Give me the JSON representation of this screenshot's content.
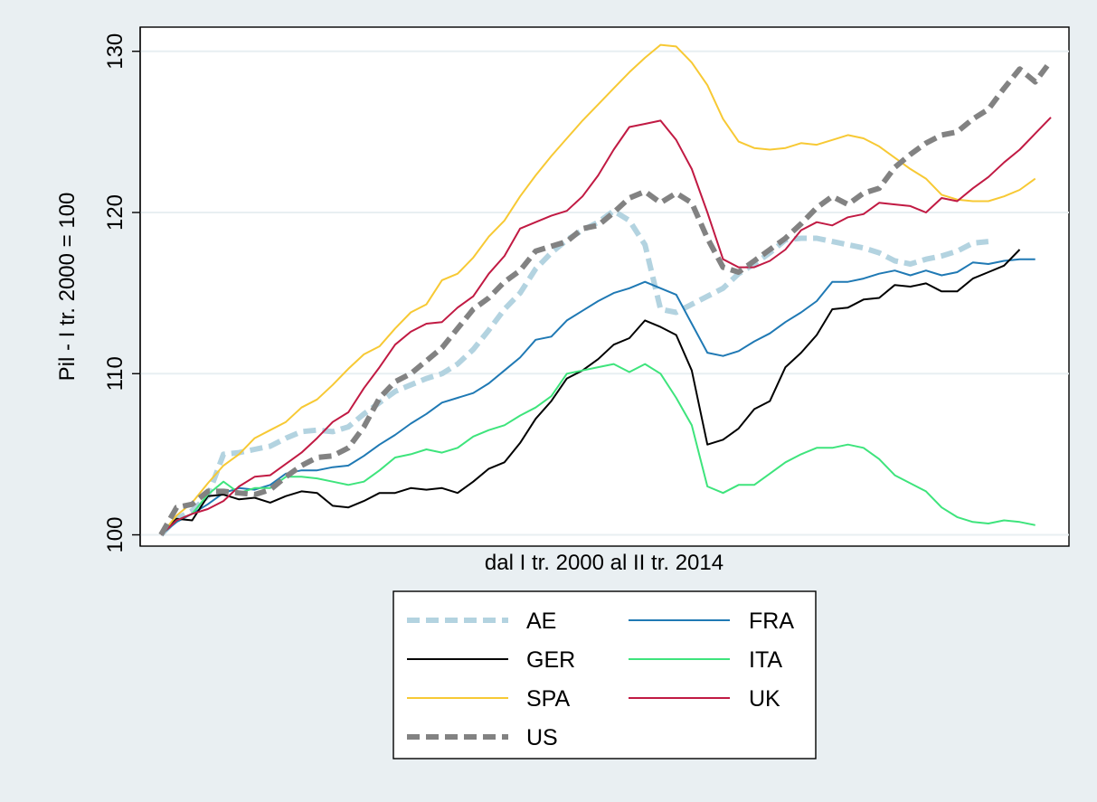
{
  "chart_data": {
    "type": "line",
    "title": "",
    "xlabel": "dal I tr. 2000 al II tr. 2014",
    "ylabel": "Pil - I tr. 2000 = 100",
    "ylim": [
      99.3,
      131.5
    ],
    "yticks": [
      100,
      110,
      120,
      130
    ],
    "ytick_labels": [
      "100",
      "110",
      "120",
      "130"
    ],
    "x_start": 0,
    "x_end": 57,
    "grid": true,
    "legend_position": "bottom",
    "series": [
      {
        "name": "AE",
        "color": "#b3d3e0",
        "dash": "dashed",
        "values": [
          100.0,
          101.0,
          101.5,
          102.4,
          105.0,
          105.1,
          105.3,
          105.5,
          106.0,
          106.4,
          106.5,
          106.4,
          106.7,
          107.5,
          108.2,
          108.9,
          109.3,
          109.7,
          110.0,
          110.6,
          111.5,
          112.7,
          114.0,
          115.0,
          116.5,
          117.5,
          118.3,
          118.9,
          119.4,
          120.1,
          119.5,
          118.0,
          114.0,
          113.8,
          114.3,
          114.8,
          115.3,
          116.2,
          116.8,
          117.5,
          118.3,
          118.4,
          118.4,
          118.2,
          118.0,
          117.8,
          117.5,
          117.0,
          116.8,
          117.1,
          117.3,
          117.6,
          118.1,
          118.2
        ]
      },
      {
        "name": "FRA",
        "color": "#1f79b4",
        "dash": "solid",
        "values": [
          100.0,
          100.8,
          101.3,
          101.9,
          102.6,
          102.9,
          102.8,
          103.1,
          103.8,
          104.0,
          104.0,
          104.2,
          104.3,
          104.9,
          105.6,
          106.2,
          106.9,
          107.5,
          108.2,
          108.5,
          108.8,
          109.4,
          110.2,
          111.0,
          112.1,
          112.3,
          113.3,
          113.9,
          114.5,
          115.0,
          115.3,
          115.7,
          115.3,
          114.9,
          113.1,
          111.3,
          111.1,
          111.4,
          112.0,
          112.5,
          113.2,
          113.8,
          114.5,
          115.7,
          115.7,
          115.9,
          116.2,
          116.4,
          116.1,
          116.4,
          116.1,
          116.3,
          116.9,
          116.8,
          117.0,
          117.1,
          117.1
        ]
      },
      {
        "name": "GER",
        "color": "#000000",
        "dash": "solid",
        "values": [
          100.0,
          101.0,
          100.9,
          102.4,
          102.5,
          102.2,
          102.3,
          102.0,
          102.4,
          102.7,
          102.6,
          101.8,
          101.7,
          102.1,
          102.6,
          102.6,
          102.9,
          102.8,
          102.9,
          102.6,
          103.3,
          104.1,
          104.5,
          105.7,
          107.2,
          108.3,
          109.7,
          110.2,
          110.9,
          111.8,
          112.2,
          113.3,
          112.9,
          112.4,
          110.2,
          105.6,
          105.9,
          106.6,
          107.8,
          108.3,
          110.4,
          111.3,
          112.4,
          114.0,
          114.1,
          114.6,
          114.7,
          115.5,
          115.4,
          115.6,
          115.1,
          115.1,
          115.9,
          116.3,
          116.7,
          117.7
        ]
      },
      {
        "name": "ITA",
        "color": "#3ee47c",
        "dash": "solid",
        "values": [
          100.0,
          100.9,
          101.3,
          102.5,
          103.3,
          102.6,
          102.9,
          102.9,
          103.6,
          103.6,
          103.5,
          103.3,
          103.1,
          103.3,
          104.0,
          104.8,
          105.0,
          105.3,
          105.1,
          105.4,
          106.1,
          106.5,
          106.8,
          107.4,
          107.9,
          108.6,
          110.0,
          110.2,
          110.4,
          110.6,
          110.1,
          110.6,
          110.0,
          108.5,
          106.8,
          103.0,
          102.6,
          103.1,
          103.1,
          103.8,
          104.5,
          105.0,
          105.4,
          105.4,
          105.6,
          105.4,
          104.7,
          103.7,
          103.2,
          102.7,
          101.7,
          101.1,
          100.8,
          100.7,
          100.9,
          100.8,
          100.6
        ]
      },
      {
        "name": "SPA",
        "color": "#f7c934",
        "dash": "solid",
        "values": [
          100.0,
          101.2,
          102.0,
          103.2,
          104.3,
          105.0,
          106.0,
          106.5,
          107.0,
          107.9,
          108.4,
          109.3,
          110.3,
          111.2,
          111.7,
          112.8,
          113.8,
          114.3,
          115.8,
          116.2,
          117.2,
          118.5,
          119.5,
          121.0,
          122.3,
          123.5,
          124.6,
          125.7,
          126.7,
          127.7,
          128.7,
          129.6,
          130.4,
          130.3,
          129.3,
          127.9,
          125.8,
          124.4,
          124.0,
          123.9,
          124.0,
          124.3,
          124.2,
          124.5,
          124.8,
          124.6,
          124.1,
          123.4,
          122.7,
          122.1,
          121.1,
          120.8,
          120.7,
          120.7,
          121.0,
          121.4,
          122.1
        ]
      },
      {
        "name": "UK",
        "color": "#c11a43",
        "dash": "solid",
        "values": [
          100.0,
          100.9,
          101.3,
          101.6,
          102.1,
          103.0,
          103.6,
          103.7,
          104.4,
          105.1,
          106.0,
          107.0,
          107.6,
          109.1,
          110.4,
          111.8,
          112.6,
          113.1,
          113.2,
          114.1,
          114.8,
          116.2,
          117.3,
          119.0,
          119.4,
          119.8,
          120.1,
          121.0,
          122.3,
          123.9,
          125.3,
          125.5,
          125.7,
          124.5,
          122.7,
          120.0,
          117.1,
          116.6,
          116.6,
          117.0,
          117.7,
          118.9,
          119.4,
          119.2,
          119.7,
          119.9,
          120.6,
          120.5,
          120.4,
          120.0,
          120.9,
          120.7,
          121.5,
          122.2,
          123.1,
          123.9,
          124.9,
          125.9
        ]
      },
      {
        "name": "US",
        "color": "#828282",
        "dash": "dashed",
        "values": [
          100.0,
          101.7,
          101.9,
          102.7,
          102.7,
          102.6,
          102.5,
          102.8,
          103.6,
          104.3,
          104.8,
          104.9,
          105.4,
          106.7,
          108.5,
          109.5,
          110.0,
          110.8,
          111.6,
          112.8,
          114.0,
          114.7,
          115.7,
          116.4,
          117.6,
          117.9,
          118.2,
          119.0,
          119.2,
          120.0,
          120.9,
          121.3,
          120.6,
          121.2,
          120.6,
          118.4,
          116.6,
          116.3,
          117.0,
          117.7,
          118.4,
          119.3,
          120.3,
          121.0,
          120.5,
          121.2,
          121.5,
          122.8,
          123.6,
          124.3,
          124.8,
          125.0,
          125.8,
          126.4,
          127.7,
          128.9,
          128.1,
          129.4
        ]
      }
    ]
  }
}
